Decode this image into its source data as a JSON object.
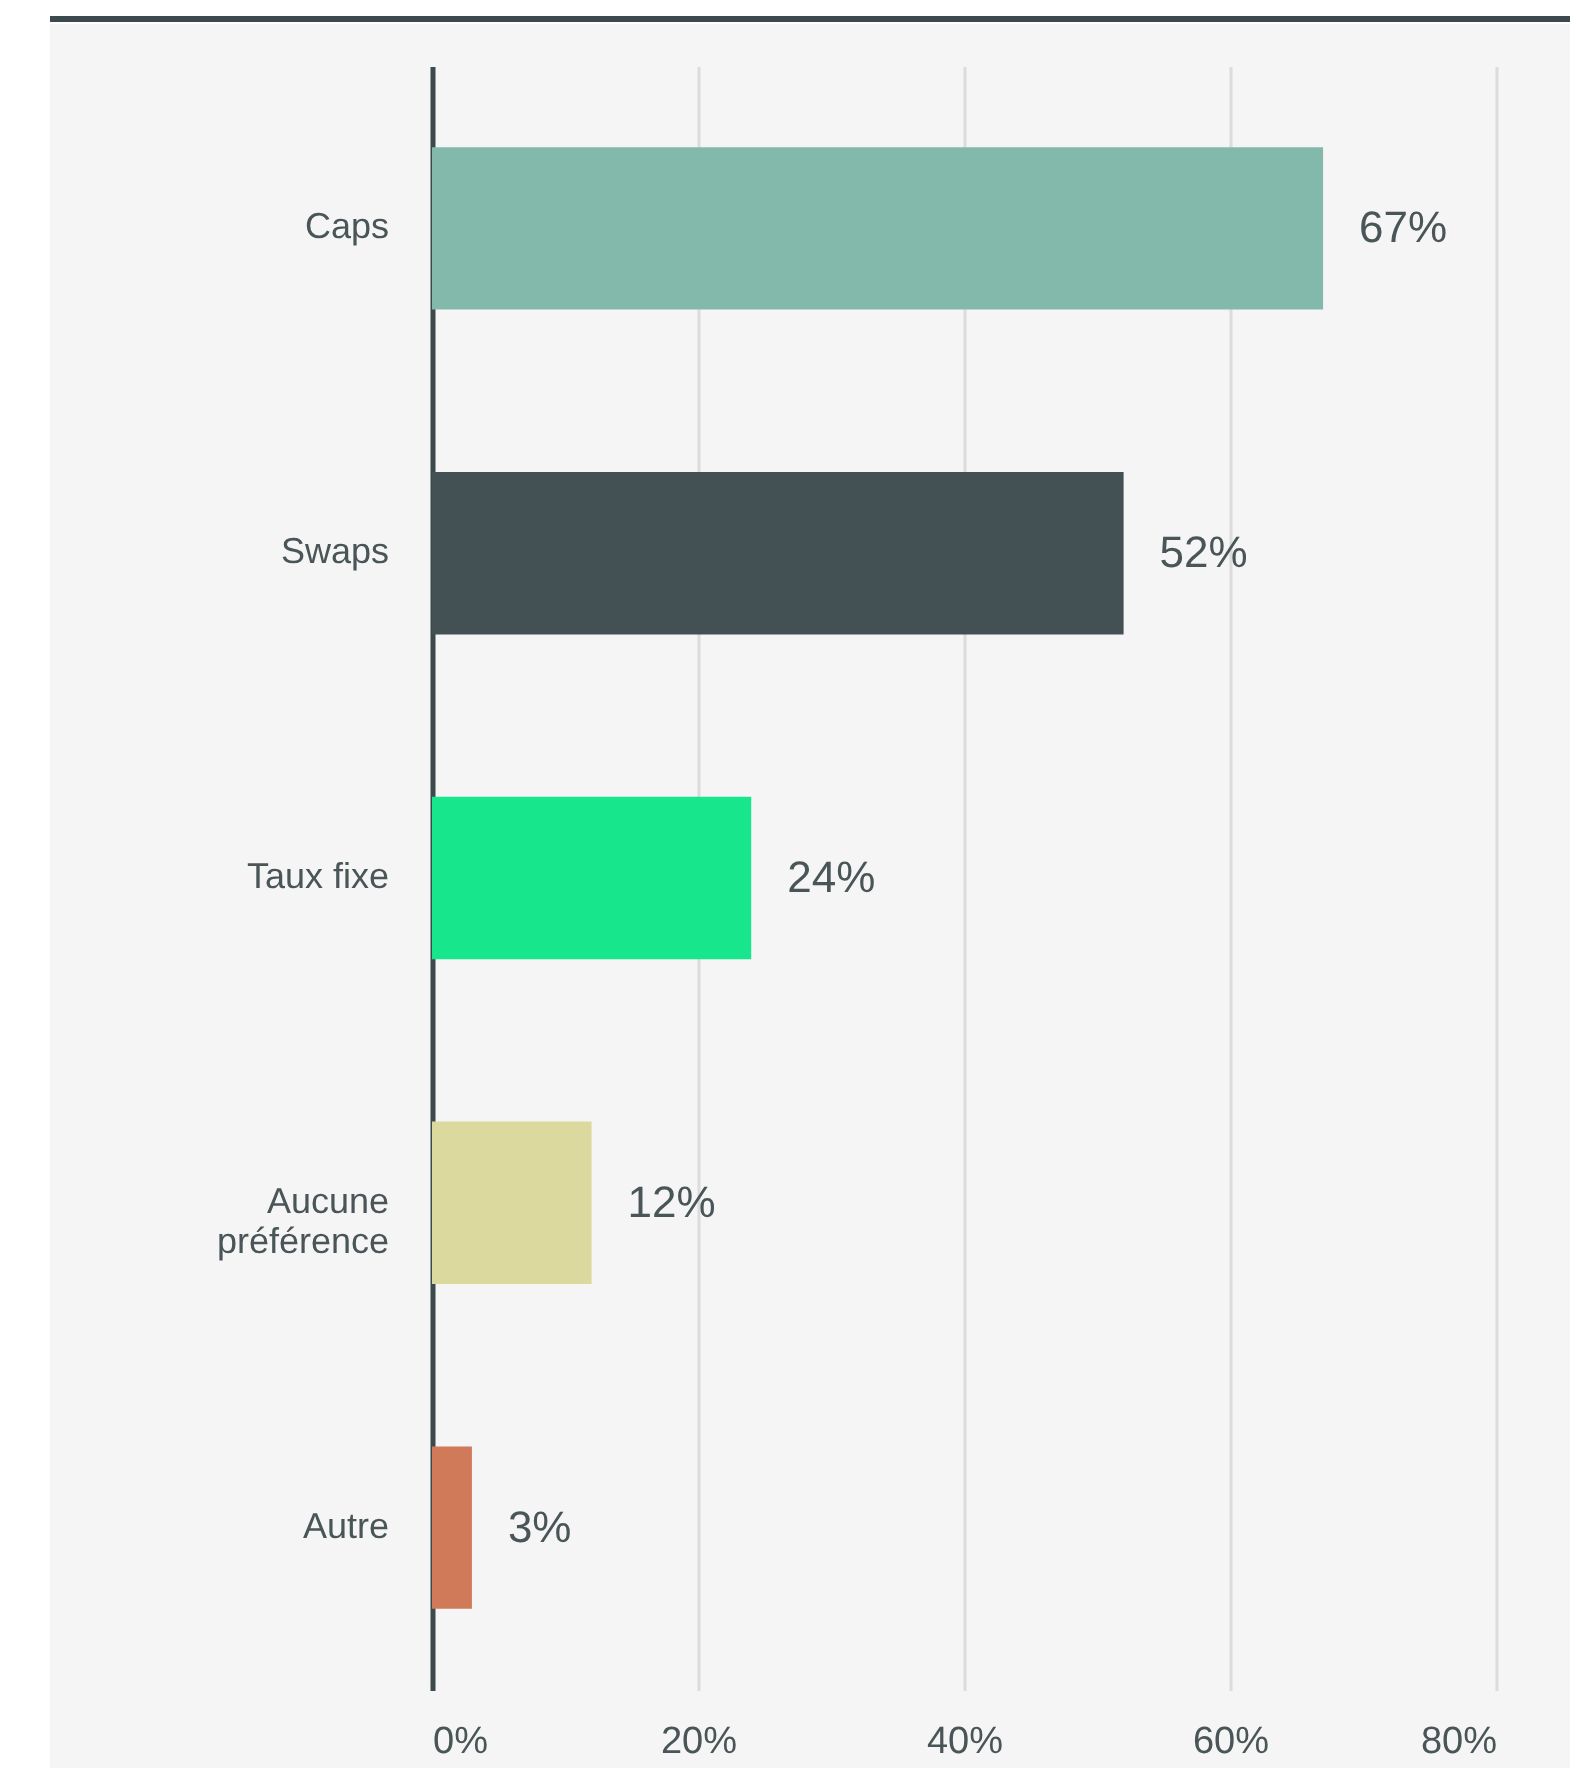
{
  "chart_data": {
    "type": "bar",
    "orientation": "horizontal",
    "categories": [
      "Caps",
      "Swaps",
      "Taux fixe",
      "Aucune préférence",
      "Autre"
    ],
    "values": [
      67,
      52,
      24,
      12,
      3
    ],
    "colors": [
      "#82b9ab",
      "#435155",
      "#18e68c",
      "#dcd99e",
      "#d07a5a"
    ],
    "value_labels": [
      "67%",
      "52%",
      "24%",
      "12%",
      "3%"
    ],
    "xlim": [
      0,
      80
    ],
    "xticks": [
      {
        "value": 0,
        "label": "0%"
      },
      {
        "value": 20,
        "label": "20%"
      },
      {
        "value": 40,
        "label": "40%"
      },
      {
        "value": 60,
        "label": "60%"
      },
      {
        "value": 80,
        "label": "80%"
      }
    ],
    "grid": "x",
    "legend": false
  }
}
